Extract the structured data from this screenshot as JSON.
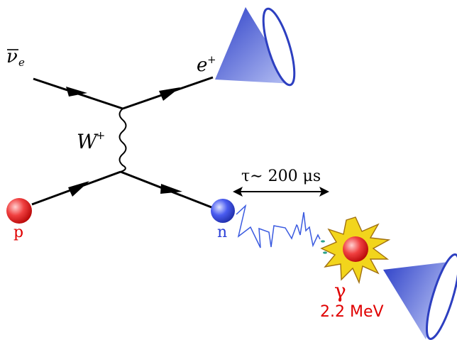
{
  "labels": {
    "antineutrino_symbol": "ν",
    "antineutrino_sub": "e",
    "positron_symbol": "e",
    "positron_sup": "+",
    "w_boson_symbol": "W",
    "w_boson_sup": "+",
    "proton": "p",
    "neutron": "n",
    "capture_time": "τ∼ 200 μs",
    "gamma": "γ",
    "gamma_energy": "2.2  MeV"
  },
  "colors": {
    "proton": "#e02020",
    "neutron": "#2a3fd8",
    "cone": "#4a5fd6",
    "line": "#000000",
    "zigzag": "#3a5ae0",
    "flash": "#f0d21a",
    "label_red": "#e00000"
  }
}
